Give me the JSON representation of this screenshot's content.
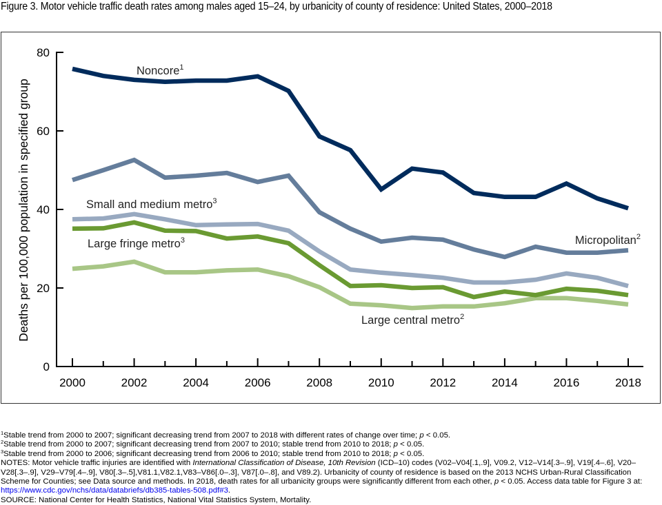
{
  "figure": {
    "title": "Figure 3. Motor vehicle traffic death rates among males aged 15–24, by urbanicity of county of residence: United States, 2000–2018"
  },
  "chart_data": {
    "type": "line",
    "title": "Figure 3. Motor vehicle traffic death rates among males aged 15–24, by urbanicity of county of residence: United States, 2000–2018",
    "xlabel": "",
    "ylabel": "Deaths per 100,000 population in specified group",
    "x": [
      2000,
      2001,
      2002,
      2003,
      2004,
      2005,
      2006,
      2007,
      2008,
      2009,
      2010,
      2011,
      2012,
      2013,
      2014,
      2015,
      2016,
      2017,
      2018
    ],
    "xlim": [
      2000,
      2018
    ],
    "ylim": [
      0,
      80
    ],
    "xticks": [
      "2000",
      "2002",
      "2004",
      "2006",
      "2008",
      "2010",
      "2012",
      "2014",
      "2016",
      "2018"
    ],
    "yticks": [
      "0",
      "20",
      "40",
      "60",
      "80"
    ],
    "grid": false,
    "legend": "inline labels",
    "series": [
      {
        "name": "Noncore",
        "sup": "1",
        "color": "#002b5c",
        "values": [
          75.8,
          74.0,
          73.0,
          72.5,
          72.8,
          72.8,
          73.9,
          70.2,
          58.6,
          55.1,
          45.1,
          50.4,
          49.4,
          44.2,
          43.2,
          43.2,
          46.6,
          42.8,
          40.3
        ]
      },
      {
        "name": "Micropolitan",
        "sup": "2",
        "color": "#647d9b",
        "values": [
          47.5,
          50.0,
          52.6,
          48.1,
          48.6,
          49.3,
          47.0,
          48.6,
          39.3,
          35.1,
          31.8,
          32.8,
          32.3,
          29.8,
          27.9,
          30.5,
          29.0,
          29.0,
          29.6
        ]
      },
      {
        "name": "Small and medium metro",
        "sup": "3",
        "color": "#98a9c0",
        "values": [
          37.5,
          37.7,
          38.8,
          37.5,
          36.0,
          36.2,
          36.3,
          34.6,
          29.3,
          24.7,
          23.9,
          23.3,
          22.6,
          21.4,
          21.4,
          22.1,
          23.7,
          22.6,
          20.5
        ]
      },
      {
        "name": "Large fringe metro",
        "sup": "3",
        "color": "#6a9a32",
        "values": [
          35.1,
          35.2,
          36.7,
          34.6,
          34.5,
          32.6,
          33.1,
          31.4,
          25.8,
          20.5,
          20.7,
          20.0,
          20.2,
          17.7,
          19.1,
          18.2,
          19.8,
          19.3,
          18.2
        ]
      },
      {
        "name": "Large central metro",
        "sup": "2",
        "color": "#a8c686",
        "values": [
          24.9,
          25.5,
          26.7,
          24.0,
          24.0,
          24.5,
          24.7,
          23.0,
          20.2,
          16.0,
          15.6,
          14.9,
          15.3,
          15.3,
          16.1,
          17.4,
          17.4,
          16.7,
          15.8
        ]
      }
    ],
    "annotations": [
      {
        "text": "Noncore",
        "sup": "1"
      },
      {
        "text": "Micropolitan",
        "sup": "2"
      },
      {
        "text": "Small and medium metro",
        "sup": "3"
      },
      {
        "text": "Large fringe metro",
        "sup": "3"
      },
      {
        "text": "Large central metro",
        "sup": "2"
      }
    ]
  },
  "notes": {
    "fn1_sup": "1",
    "fn1": "Stable trend from 2000 to 2007; significant decreasing trend from 2007 to 2018 with different rates of change over time; ",
    "fn2_sup": "2",
    "fn2": "Stable trend from 2000 to 2007; significant decreasing trend from 2007 to 2010; stable trend from 2010 to 2018; ",
    "fn3_sup": "3",
    "fn3": "Stable trend from 2000 to 2006; significant decreasing trend from 2006 to 2010; stable trend from 2010 to 2018; ",
    "p": "p",
    "p_rest": " < 0.05.",
    "notes_a": "NOTES: Motor vehicle traffic injuries are identified with ",
    "notes_italic1": "International Classification of Disease, 10th Revision",
    "notes_b": " (ICD–10) codes (V02–V04[.1,.9], V09.2, V12–V14[.3–.9], V19[.4–.6], V20–V28[.3–.9], V29–V79[.4–.9], V80[.3–.5],V81.1,V82.1,V83–V86[.0–.3], V87[.0–.8], and V89.2). Urbanicity of county of residence is based on the 2013 NCHS Urban-Rural Classification Scheme for Counties; see Data source and methods. In 2018, death rates for all urbanicity groups were significantly different from each other, ",
    "notes_c": " < 0.05. Access data table for Figure 3 at: ",
    "link": "https://www.cdc.gov/nchs/data/databriefs/db385-tables-508.pdf#3",
    "notes_d": ".",
    "source": "SOURCE: National Center for Health Statistics, National Vital Statistics System, Mortality."
  }
}
